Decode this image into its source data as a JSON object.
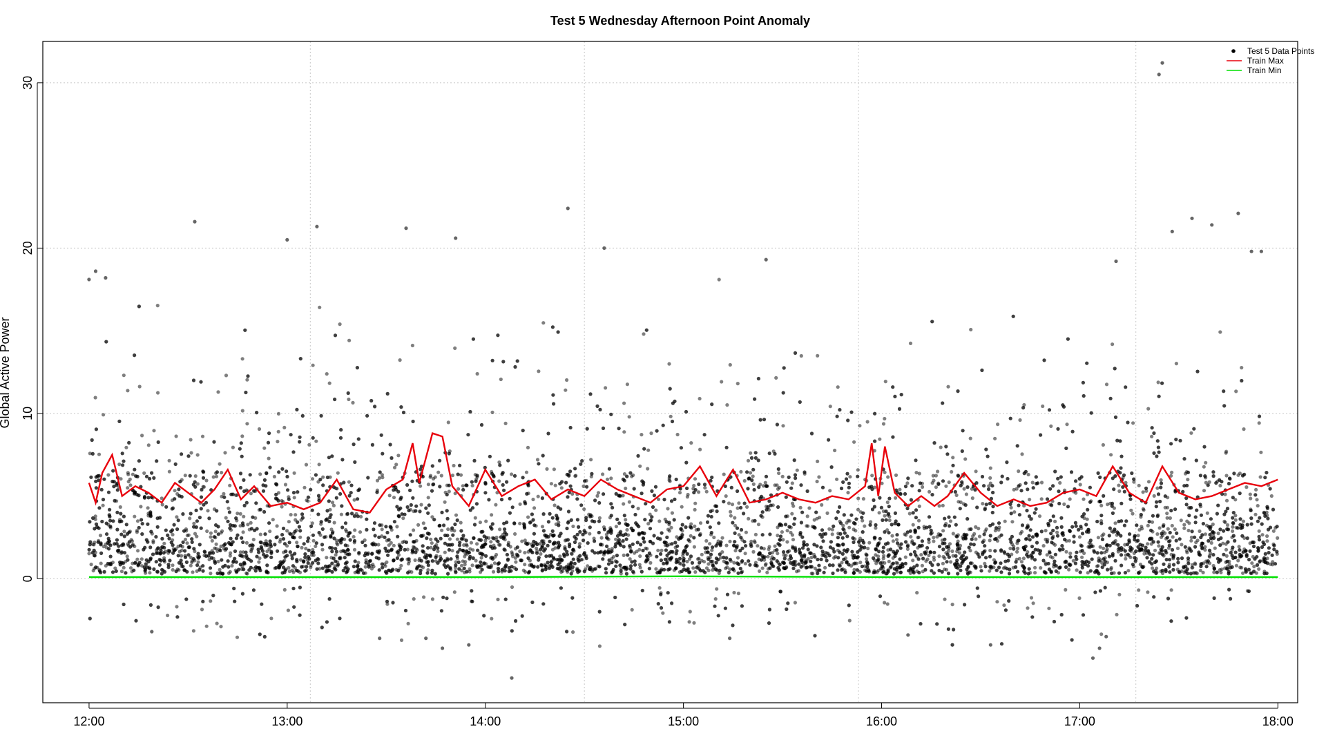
{
  "chart_data": {
    "type": "scatter",
    "title": "Test 5 Wednesday Afternoon Point Anomaly",
    "xlabel": "",
    "ylabel": "Global Active Power",
    "x_unit": "time (HH:MM)",
    "x_range": [
      "12:00",
      "18:00"
    ],
    "xlim": [
      "11:46",
      "18:06"
    ],
    "ylim": [
      -7.5,
      32.5
    ],
    "x_ticks": [
      "12:00",
      "13:00",
      "14:00",
      "15:00",
      "16:00",
      "17:00",
      "18:00"
    ],
    "y_ticks": [
      0,
      10,
      20,
      30
    ],
    "grid": true,
    "grid_x_lines": [
      "13:07",
      "14:30",
      "15:53",
      "17:17"
    ],
    "grid_y_lines": [
      0,
      10,
      20,
      30
    ],
    "legend_position": "top-right",
    "legend": [
      {
        "label": "Test 5 Data Points",
        "kind": "point",
        "color": "#000000"
      },
      {
        "label": "Train Max",
        "kind": "line",
        "color": "#e8000b"
      },
      {
        "label": "Train Min",
        "kind": "line",
        "color": "#00e000"
      }
    ],
    "series": [
      {
        "name": "Test 5 Data Points",
        "kind": "scatter",
        "color": "#000000",
        "note_distribution": "dense band 0–6 with sparse points up to ~22 and down to ~-6",
        "points": [
          {
            "x": "12:00",
            "y": 18.1
          },
          {
            "x": "12:02",
            "y": 18.6
          },
          {
            "x": "12:05",
            "y": 18.2
          },
          {
            "x": "12:32",
            "y": 21.6
          },
          {
            "x": "13:00",
            "y": 20.5
          },
          {
            "x": "13:09",
            "y": 21.3
          },
          {
            "x": "13:36",
            "y": 21.2
          },
          {
            "x": "13:51",
            "y": 20.6
          },
          {
            "x": "14:25",
            "y": 22.4
          },
          {
            "x": "14:36",
            "y": 20.0
          },
          {
            "x": "15:25",
            "y": 19.3
          },
          {
            "x": "17:11",
            "y": 19.2
          },
          {
            "x": "17:28",
            "y": 21.0
          },
          {
            "x": "17:34",
            "y": 21.8
          },
          {
            "x": "17:40",
            "y": 21.4
          },
          {
            "x": "17:48",
            "y": 22.1
          },
          {
            "x": "17:52",
            "y": 19.8
          },
          {
            "x": "17:55",
            "y": 19.8
          },
          {
            "x": "17:25",
            "y": 31.2
          },
          {
            "x": "17:24",
            "y": 30.5
          },
          {
            "x": "14:08",
            "y": -6.0
          },
          {
            "x": "17:04",
            "y": -4.8
          },
          {
            "x": "17:06",
            "y": -4.2
          },
          {
            "x": "13:47",
            "y": -4.2
          },
          {
            "x": "13:55",
            "y": -4.0
          },
          {
            "x": "16:08",
            "y": -3.4
          },
          {
            "x": "15:14",
            "y": -3.6
          },
          {
            "x": "13:28",
            "y": -3.6
          },
          {
            "x": "12:19",
            "y": -3.2
          },
          {
            "x": "16:33",
            "y": -4.0
          },
          {
            "x": "17:08",
            "y": -3.5
          },
          {
            "x": "13:42",
            "y": -3.6
          }
        ]
      },
      {
        "name": "Train Max",
        "kind": "line",
        "color": "#e8000b",
        "points": [
          {
            "x": "12:00",
            "y": 5.8
          },
          {
            "x": "12:02",
            "y": 4.6
          },
          {
            "x": "12:04",
            "y": 6.4
          },
          {
            "x": "12:07",
            "y": 7.5
          },
          {
            "x": "12:10",
            "y": 5.0
          },
          {
            "x": "12:14",
            "y": 5.6
          },
          {
            "x": "12:18",
            "y": 5.2
          },
          {
            "x": "12:22",
            "y": 4.6
          },
          {
            "x": "12:26",
            "y": 5.8
          },
          {
            "x": "12:30",
            "y": 5.2
          },
          {
            "x": "12:34",
            "y": 4.6
          },
          {
            "x": "12:38",
            "y": 5.4
          },
          {
            "x": "12:42",
            "y": 6.6
          },
          {
            "x": "12:46",
            "y": 4.8
          },
          {
            "x": "12:50",
            "y": 5.6
          },
          {
            "x": "12:55",
            "y": 4.4
          },
          {
            "x": "13:00",
            "y": 4.6
          },
          {
            "x": "13:05",
            "y": 4.2
          },
          {
            "x": "13:10",
            "y": 4.6
          },
          {
            "x": "13:15",
            "y": 6.0
          },
          {
            "x": "13:20",
            "y": 4.2
          },
          {
            "x": "13:25",
            "y": 4.0
          },
          {
            "x": "13:30",
            "y": 5.4
          },
          {
            "x": "13:35",
            "y": 6.0
          },
          {
            "x": "13:38",
            "y": 8.2
          },
          {
            "x": "13:40",
            "y": 5.8
          },
          {
            "x": "13:44",
            "y": 8.8
          },
          {
            "x": "13:47",
            "y": 8.6
          },
          {
            "x": "13:50",
            "y": 5.6
          },
          {
            "x": "13:55",
            "y": 4.4
          },
          {
            "x": "14:00",
            "y": 6.6
          },
          {
            "x": "14:05",
            "y": 5.0
          },
          {
            "x": "14:10",
            "y": 5.6
          },
          {
            "x": "14:15",
            "y": 6.0
          },
          {
            "x": "14:20",
            "y": 4.8
          },
          {
            "x": "14:25",
            "y": 5.4
          },
          {
            "x": "14:30",
            "y": 5.0
          },
          {
            "x": "14:35",
            "y": 6.0
          },
          {
            "x": "14:40",
            "y": 5.4
          },
          {
            "x": "14:45",
            "y": 5.0
          },
          {
            "x": "14:50",
            "y": 4.6
          },
          {
            "x": "14:55",
            "y": 5.4
          },
          {
            "x": "15:00",
            "y": 5.6
          },
          {
            "x": "15:05",
            "y": 6.8
          },
          {
            "x": "15:10",
            "y": 5.0
          },
          {
            "x": "15:15",
            "y": 6.6
          },
          {
            "x": "15:20",
            "y": 4.6
          },
          {
            "x": "15:25",
            "y": 4.8
          },
          {
            "x": "15:30",
            "y": 5.2
          },
          {
            "x": "15:35",
            "y": 4.8
          },
          {
            "x": "15:40",
            "y": 4.6
          },
          {
            "x": "15:45",
            "y": 5.0
          },
          {
            "x": "15:50",
            "y": 4.8
          },
          {
            "x": "15:55",
            "y": 5.6
          },
          {
            "x": "15:57",
            "y": 8.2
          },
          {
            "x": "15:59",
            "y": 5.0
          },
          {
            "x": "16:01",
            "y": 8.0
          },
          {
            "x": "16:04",
            "y": 5.2
          },
          {
            "x": "16:08",
            "y": 4.4
          },
          {
            "x": "16:12",
            "y": 5.0
          },
          {
            "x": "16:16",
            "y": 4.4
          },
          {
            "x": "16:20",
            "y": 5.0
          },
          {
            "x": "16:25",
            "y": 6.4
          },
          {
            "x": "16:30",
            "y": 5.2
          },
          {
            "x": "16:35",
            "y": 4.4
          },
          {
            "x": "16:40",
            "y": 4.8
          },
          {
            "x": "16:45",
            "y": 4.4
          },
          {
            "x": "16:50",
            "y": 4.6
          },
          {
            "x": "16:55",
            "y": 5.2
          },
          {
            "x": "17:00",
            "y": 5.4
          },
          {
            "x": "17:05",
            "y": 5.0
          },
          {
            "x": "17:10",
            "y": 6.8
          },
          {
            "x": "17:15",
            "y": 5.2
          },
          {
            "x": "17:20",
            "y": 4.6
          },
          {
            "x": "17:25",
            "y": 6.8
          },
          {
            "x": "17:30",
            "y": 5.2
          },
          {
            "x": "17:35",
            "y": 4.8
          },
          {
            "x": "17:40",
            "y": 5.0
          },
          {
            "x": "17:45",
            "y": 5.4
          },
          {
            "x": "17:50",
            "y": 5.8
          },
          {
            "x": "17:55",
            "y": 5.6
          },
          {
            "x": "18:00",
            "y": 6.0
          }
        ]
      },
      {
        "name": "Train Min",
        "kind": "line",
        "color": "#00e000",
        "points": [
          {
            "x": "12:00",
            "y": 0.1
          },
          {
            "x": "13:00",
            "y": 0.1
          },
          {
            "x": "14:00",
            "y": 0.1
          },
          {
            "x": "15:00",
            "y": 0.15
          },
          {
            "x": "16:00",
            "y": 0.1
          },
          {
            "x": "17:00",
            "y": 0.1
          },
          {
            "x": "18:00",
            "y": 0.1
          }
        ]
      }
    ]
  }
}
